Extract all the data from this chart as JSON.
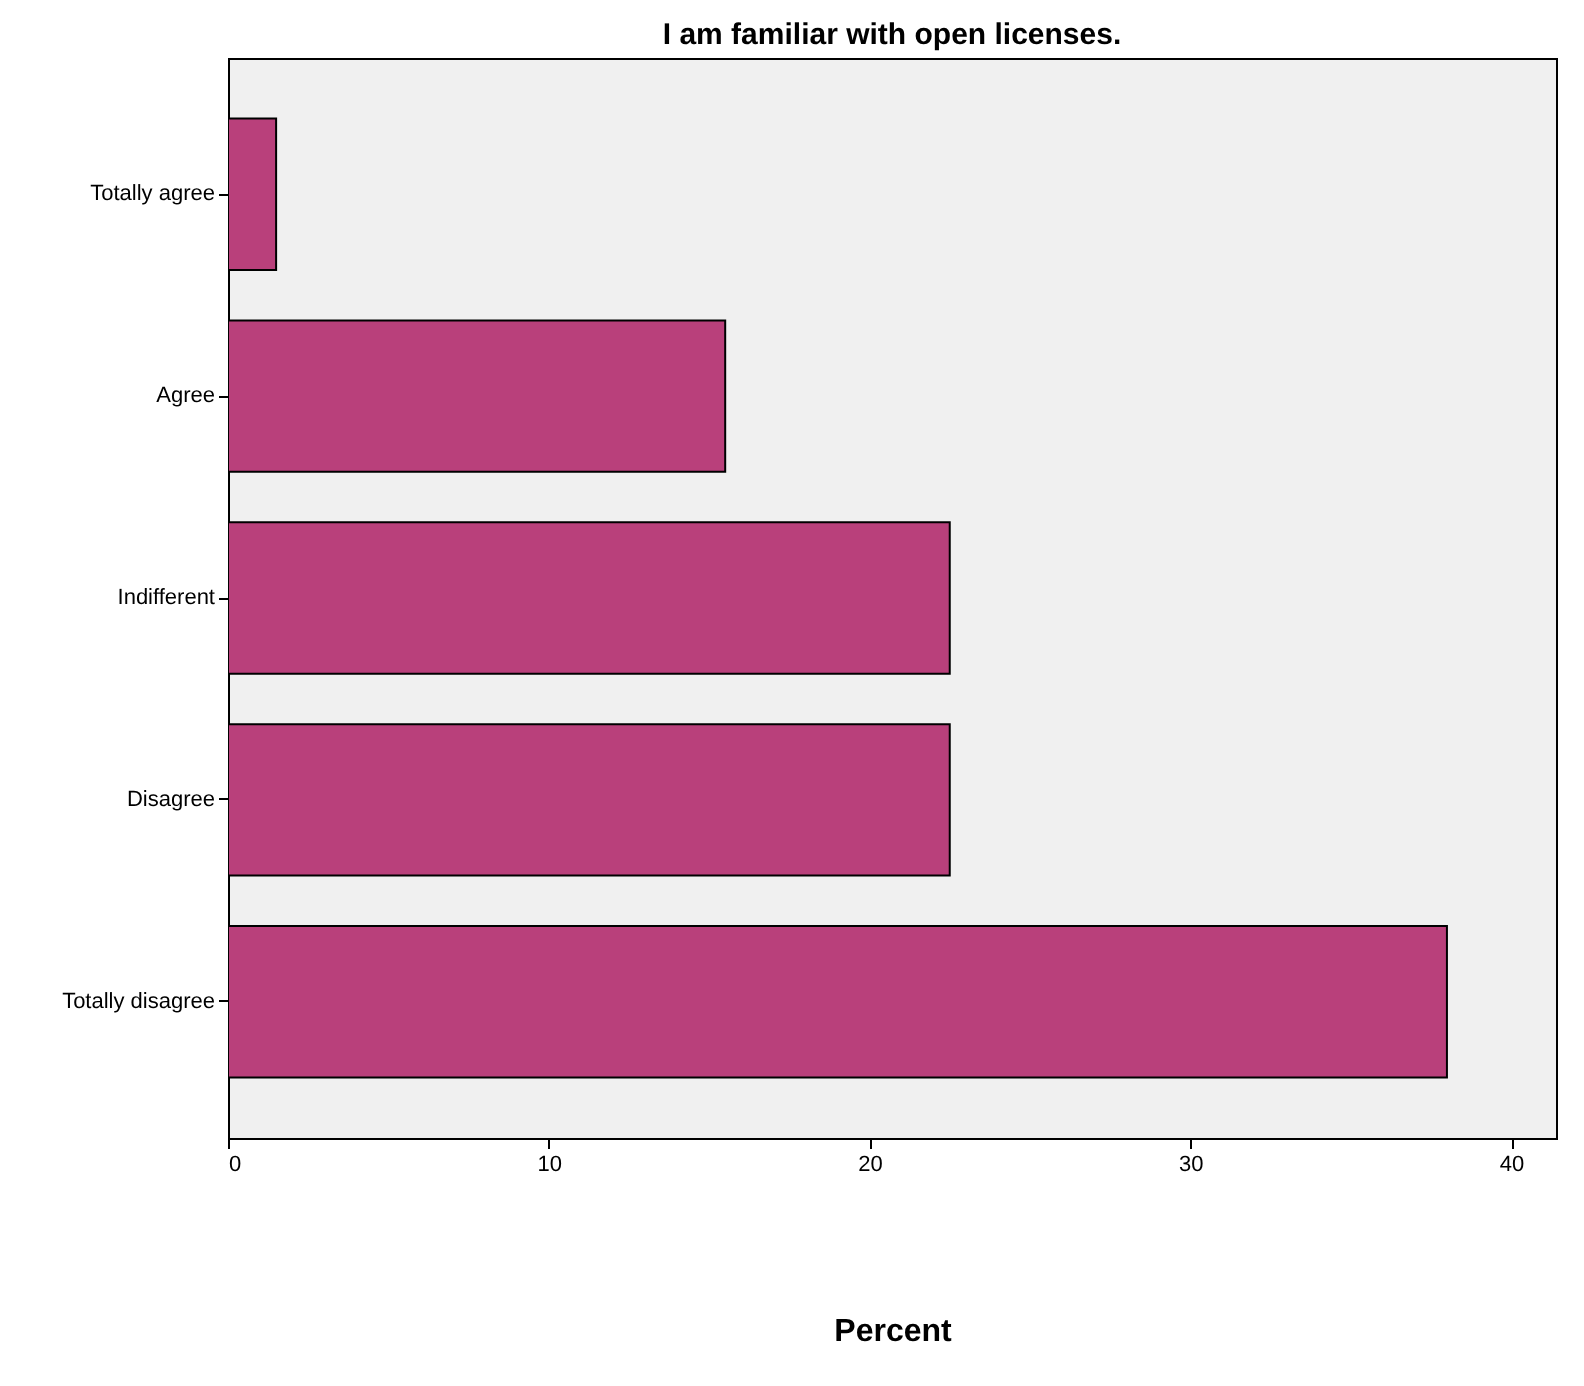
{
  "chart_data": {
    "type": "bar",
    "orientation": "horizontal",
    "title": "I am familiar with open licenses.",
    "xlabel": "Percent",
    "categories": [
      "Totally agree",
      "Agree",
      "Indifferent",
      "Disagree",
      "Totally disagree"
    ],
    "values": [
      1.5,
      15.5,
      22.5,
      22.5,
      38.0
    ],
    "color": "#b9407b",
    "xlim": [
      0,
      41.4
    ],
    "xticks": [
      0,
      10,
      20,
      30,
      40
    ],
    "grid": false
  }
}
